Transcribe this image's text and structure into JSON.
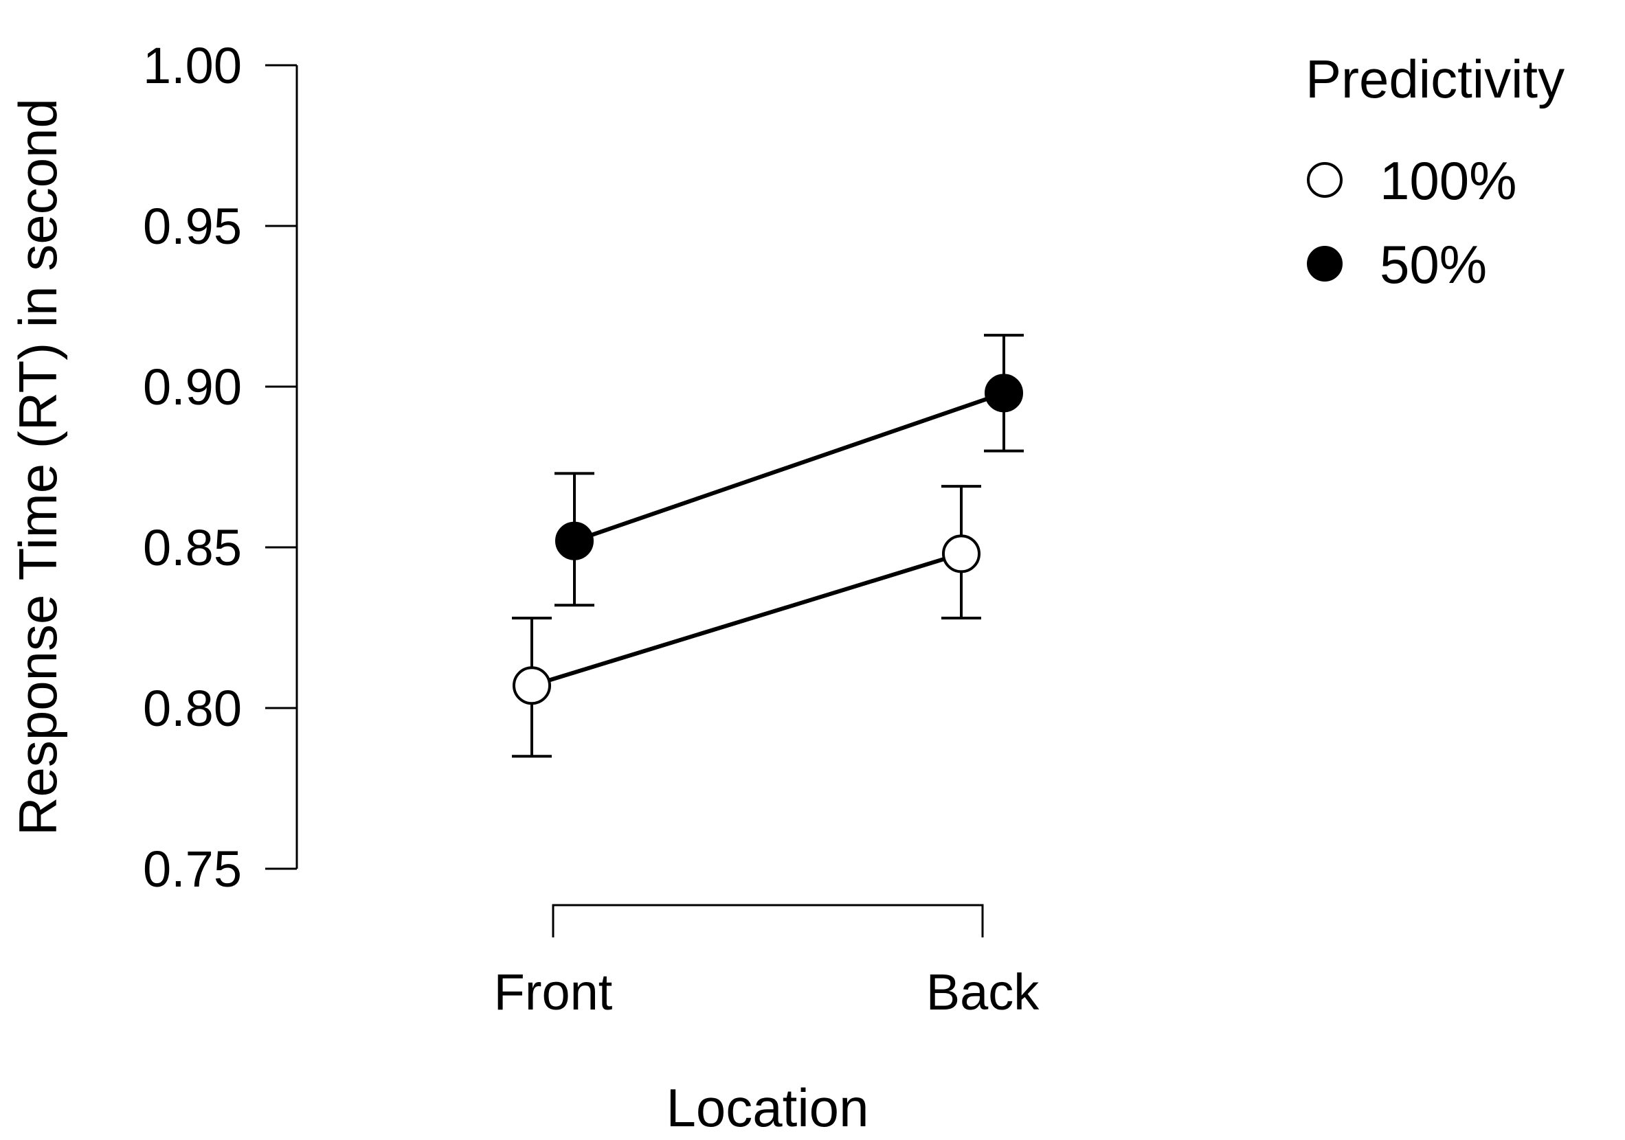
{
  "chart_data": {
    "type": "line",
    "x_label": "Location",
    "y_label": "Response Time (RT) in second",
    "categories": [
      "Front",
      "Back"
    ],
    "ylim": [
      0.75,
      1.0
    ],
    "y_ticks": [
      "0.75",
      "0.80",
      "0.85",
      "0.90",
      "0.95",
      "1.00"
    ],
    "y_tick_values": [
      0.75,
      0.8,
      0.85,
      0.9,
      0.95,
      1.0
    ],
    "grid": false,
    "legend": {
      "title": "Predictivity",
      "placement": "top-right",
      "entries": [
        {
          "label": "100%",
          "marker": "open-circle"
        },
        {
          "label": "50%",
          "marker": "filled-circle"
        }
      ]
    },
    "series": [
      {
        "name": "100%",
        "marker": "open-circle",
        "values": [
          0.807,
          0.848
        ],
        "error_low": [
          0.785,
          0.828
        ],
        "error_high": [
          0.828,
          0.869
        ]
      },
      {
        "name": "50%",
        "marker": "filled-circle",
        "values": [
          0.852,
          0.898
        ],
        "error_low": [
          0.832,
          0.88
        ],
        "error_high": [
          0.873,
          0.916
        ]
      }
    ]
  }
}
